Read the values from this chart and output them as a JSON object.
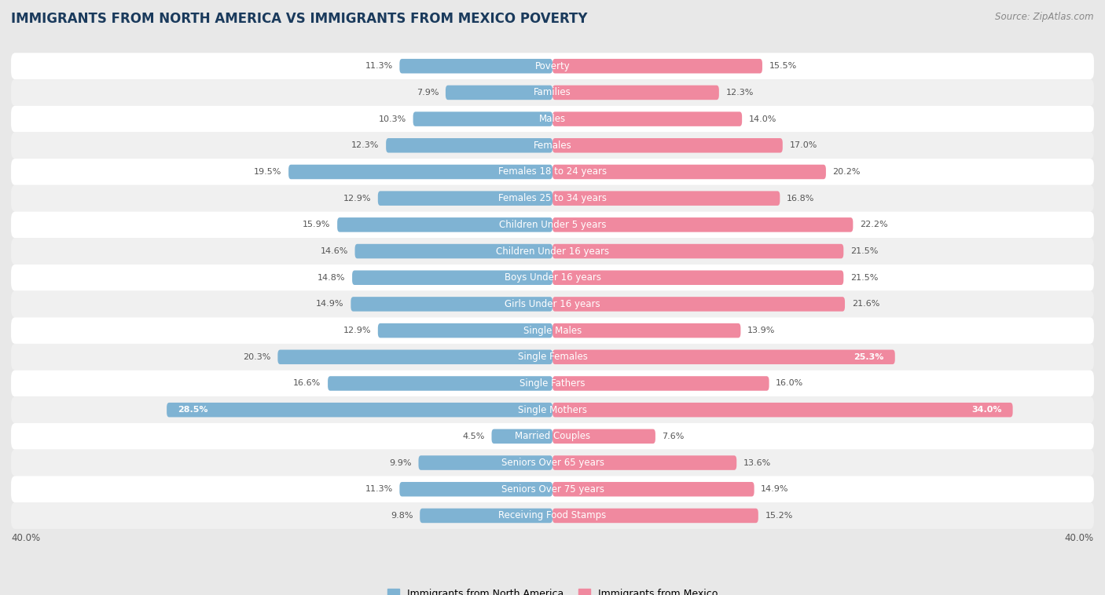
{
  "title": "IMMIGRANTS FROM NORTH AMERICA VS IMMIGRANTS FROM MEXICO POVERTY",
  "source": "Source: ZipAtlas.com",
  "categories": [
    "Poverty",
    "Families",
    "Males",
    "Females",
    "Females 18 to 24 years",
    "Females 25 to 34 years",
    "Children Under 5 years",
    "Children Under 16 years",
    "Boys Under 16 years",
    "Girls Under 16 years",
    "Single Males",
    "Single Females",
    "Single Fathers",
    "Single Mothers",
    "Married Couples",
    "Seniors Over 65 years",
    "Seniors Over 75 years",
    "Receiving Food Stamps"
  ],
  "left_values": [
    11.3,
    7.9,
    10.3,
    12.3,
    19.5,
    12.9,
    15.9,
    14.6,
    14.8,
    14.9,
    12.9,
    20.3,
    16.6,
    28.5,
    4.5,
    9.9,
    11.3,
    9.8
  ],
  "right_values": [
    15.5,
    12.3,
    14.0,
    17.0,
    20.2,
    16.8,
    22.2,
    21.5,
    21.5,
    21.6,
    13.9,
    25.3,
    16.0,
    34.0,
    7.6,
    13.6,
    14.9,
    15.2
  ],
  "left_color": "#7fb3d3",
  "right_color": "#f0899f",
  "left_label": "Immigrants from North America",
  "right_label": "Immigrants from Mexico",
  "xlim": 40.0,
  "background_color": "#e8e8e8",
  "row_bg_color": "#f0f0f0",
  "row_white_color": "#ffffff",
  "title_fontsize": 12,
  "label_fontsize": 8.5,
  "value_fontsize": 8,
  "source_fontsize": 8.5
}
